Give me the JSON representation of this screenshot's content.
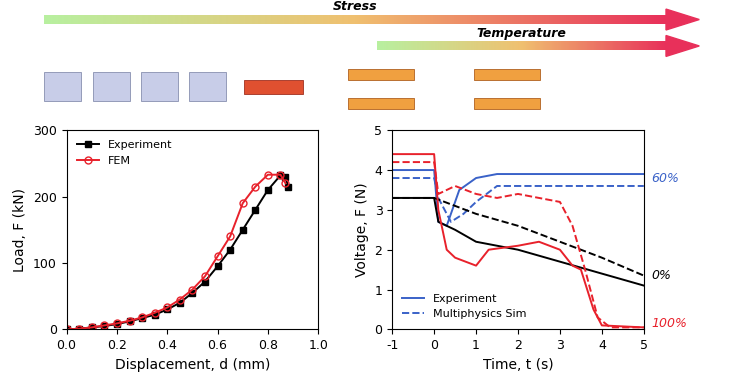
{
  "diagram": {
    "arrows": [
      {
        "label": "Stress"
      },
      {
        "label": "Temperature"
      }
    ]
  },
  "chart_data": [
    {
      "type": "line",
      "xlabel": "Displacement, d (mm)",
      "ylabel": "Load, F (kN)",
      "xlim": [
        0.0,
        1.0
      ],
      "xticks": [
        {
          "value": 0.0,
          "label": "0.0"
        },
        {
          "value": 0.2,
          "label": "0.2"
        },
        {
          "value": 0.4,
          "label": "0.4"
        },
        {
          "value": 0.6,
          "label": "0.6"
        },
        {
          "value": 0.8,
          "label": "0.8"
        },
        {
          "value": 1.0,
          "label": "1.0"
        }
      ],
      "ylim": [
        0,
        300
      ],
      "yticks": [
        0,
        100,
        200,
        300
      ],
      "legend": "upper left",
      "series": [
        {
          "name": "Experiment",
          "color": "#000000",
          "marker": "square",
          "line_style": "solid",
          "x": [
            0,
            0.05,
            0.1,
            0.15,
            0.2,
            0.25,
            0.3,
            0.35,
            0.4,
            0.45,
            0.5,
            0.55,
            0.6,
            0.65,
            0.7,
            0.75,
            0.8,
            0.85,
            0.87,
            0.88
          ],
          "values": [
            0,
            1,
            3,
            5,
            8,
            12,
            17,
            22,
            30,
            40,
            55,
            72,
            95,
            120,
            150,
            180,
            210,
            232,
            230,
            215
          ]
        },
        {
          "name": "FEM",
          "color": "#e8212b",
          "marker": "open_circle",
          "line_style": "solid",
          "x": [
            0,
            0.05,
            0.1,
            0.15,
            0.2,
            0.25,
            0.3,
            0.35,
            0.4,
            0.45,
            0.5,
            0.55,
            0.6,
            0.65,
            0.7,
            0.75,
            0.8,
            0.85,
            0.87
          ],
          "values": [
            0,
            1,
            3,
            6,
            9,
            13,
            18,
            25,
            33,
            45,
            60,
            80,
            110,
            140,
            190,
            215,
            233,
            233,
            220
          ]
        }
      ]
    },
    {
      "type": "line",
      "xlabel": "Time, t (s)",
      "ylabel": "Voltage, F (N)",
      "xlim": [
        -1,
        5
      ],
      "xticks": [
        -1,
        0,
        1,
        2,
        3,
        4,
        5
      ],
      "ylim": [
        0,
        5
      ],
      "yticks": [
        0,
        1,
        2,
        3,
        4,
        5
      ],
      "legend": "lower left",
      "series": [
        {
          "name": "Experiment",
          "color": "#3a62c8",
          "line_style": "solid",
          "x": [
            -1,
            0,
            0.1,
            0.3,
            0.6,
            1,
            1.5,
            5
          ],
          "values": [
            4.0,
            4.0,
            2.7,
            2.6,
            3.5,
            3.8,
            3.9,
            3.9
          ]
        },
        {
          "name": "Multiphysics Sim",
          "color": "#3a62c8",
          "line_style": "dashed",
          "x": [
            -1,
            0,
            0.1,
            0.4,
            0.7,
            1.0,
            1.5,
            5
          ],
          "values": [
            3.8,
            3.8,
            3.3,
            2.7,
            2.9,
            3.2,
            3.6,
            3.6
          ]
        },
        {
          "name": "Experiment",
          "color": "#000000",
          "line_style": "solid",
          "x": [
            -1,
            0,
            0.1,
            0.5,
            1,
            2,
            3,
            4,
            5
          ],
          "values": [
            3.3,
            3.3,
            2.7,
            2.5,
            2.2,
            2.0,
            1.7,
            1.4,
            1.1
          ]
        },
        {
          "name": "Multiphysics Sim",
          "color": "#000000",
          "line_style": "dashed",
          "x": [
            -1,
            0,
            0.5,
            1,
            2,
            3,
            4,
            5
          ],
          "values": [
            3.3,
            3.3,
            3.1,
            2.9,
            2.6,
            2.2,
            1.8,
            1.35
          ]
        },
        {
          "name": "Experiment",
          "color": "#e8212b",
          "line_style": "solid",
          "x": [
            -1,
            0,
            0.1,
            0.3,
            0.5,
            1,
            1.3,
            2,
            2.5,
            3,
            3.3,
            3.5,
            3.8,
            4,
            5
          ],
          "values": [
            4.4,
            4.4,
            3.0,
            2.0,
            1.8,
            1.6,
            2.0,
            2.1,
            2.2,
            2.0,
            1.6,
            1.5,
            0.5,
            0.1,
            0.05
          ]
        },
        {
          "name": "Multiphysics Sim",
          "color": "#e8212b",
          "line_style": "dashed",
          "x": [
            -1,
            0,
            0.1,
            0.5,
            1,
            1.5,
            2,
            2.5,
            3,
            3.3,
            3.6,
            3.9,
            4.2,
            5
          ],
          "values": [
            4.2,
            4.2,
            3.4,
            3.6,
            3.4,
            3.3,
            3.4,
            3.3,
            3.2,
            2.6,
            1.5,
            0.3,
            0.05,
            0.05
          ]
        }
      ],
      "annotations": [
        {
          "text": "60%",
          "color": "#3a62c8",
          "y": 3.8
        },
        {
          "text": "0%",
          "color": "#000000",
          "y": 1.35
        },
        {
          "text": "100%",
          "color": "#e8212b",
          "y": 0.15
        }
      ]
    }
  ]
}
